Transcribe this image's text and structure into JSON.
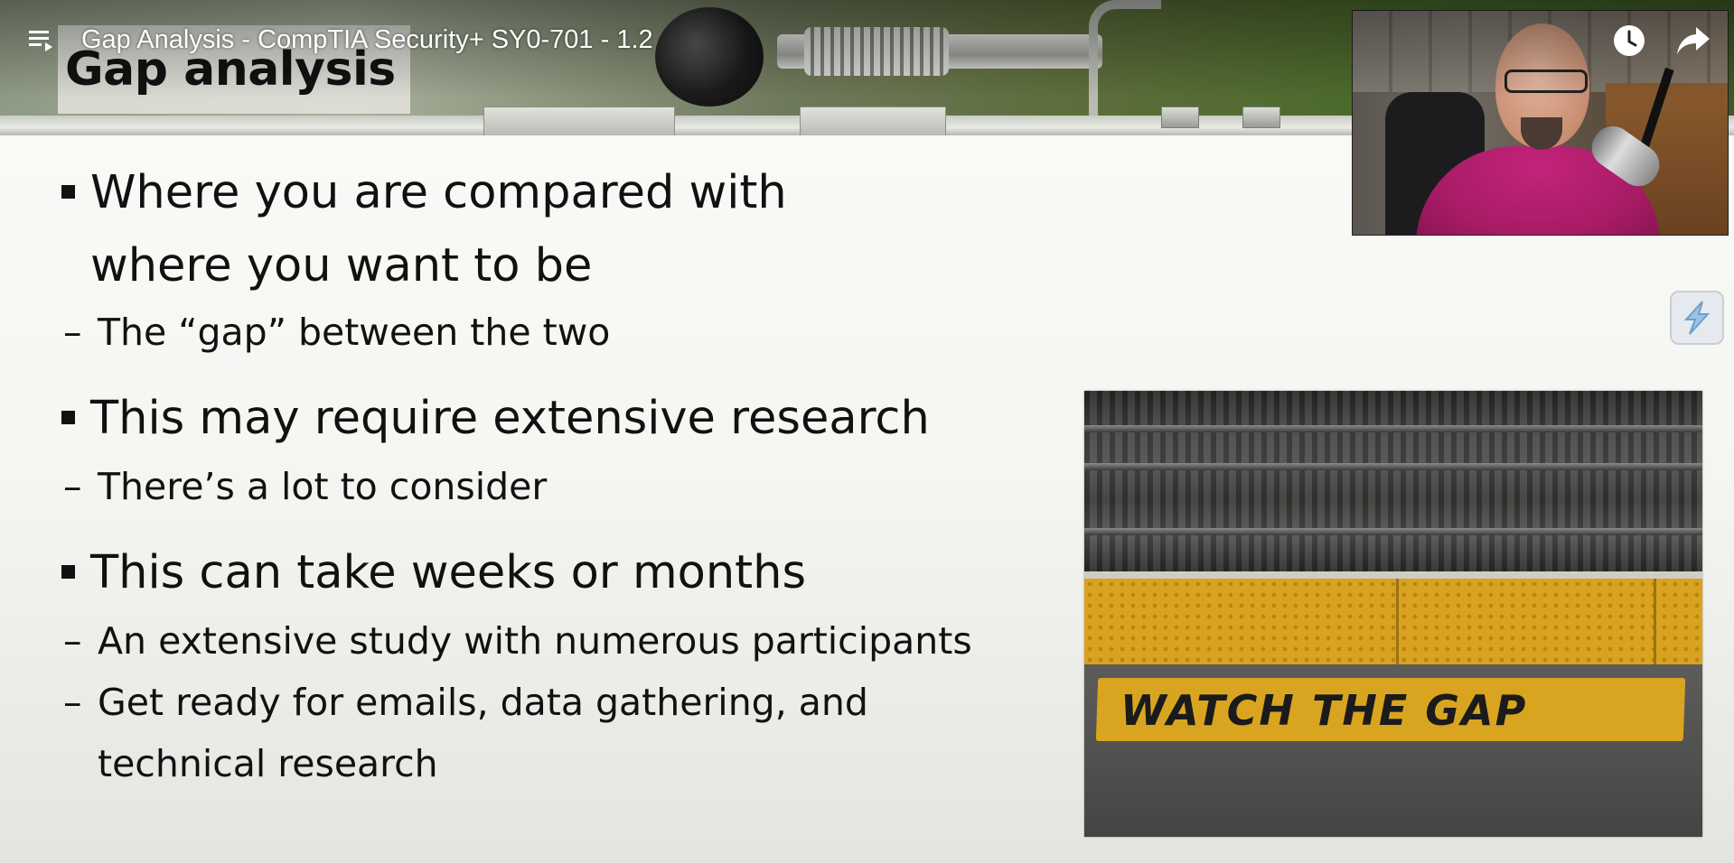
{
  "player": {
    "video_title": "Gap Analysis - CompTIA Security+ SY0-701 - 1.2",
    "icons": {
      "playlist": "playlist-icon",
      "watch_later": "clock-icon",
      "share": "share-arrow-icon",
      "extension": "bolt-extension-icon"
    }
  },
  "slide": {
    "title": "Gap analysis",
    "bullets": [
      {
        "text_line1": "Where you are compared with",
        "text_line2": "where you want to be",
        "subs": [
          "The “gap” between the two"
        ]
      },
      {
        "text_line1": "This may require extensive research",
        "subs": [
          "There’s a lot to consider"
        ]
      },
      {
        "text_line1": "This can take weeks or months",
        "subs": [
          "An extensive study with numerous participants",
          "Get ready for emails, data gathering, and",
          "technical research"
        ]
      }
    ],
    "photo_sign_text": "WATCH  THE  GAP"
  },
  "colors": {
    "accent_sign_yellow": "#d9a520",
    "presenter_shirt": "#a81c66"
  }
}
